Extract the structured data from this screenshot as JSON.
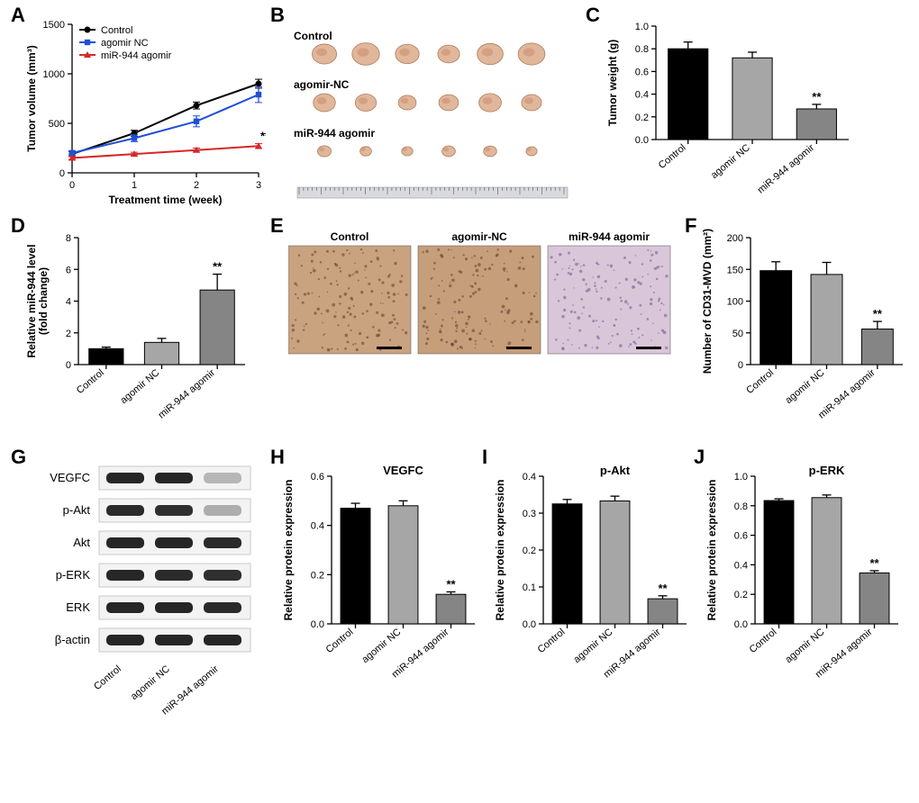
{
  "labels": {
    "A": "A",
    "B": "B",
    "C": "C",
    "D": "D",
    "E": "E",
    "F": "F",
    "G": "G",
    "H": "H",
    "I": "I",
    "J": "J"
  },
  "groups": [
    "Control",
    "agomir NC",
    "miR-944 agomir"
  ],
  "groups_dash": [
    "Control",
    "agomir-NC",
    "miR-944 agomir"
  ],
  "A": {
    "type": "line",
    "series": [
      {
        "name": "Control",
        "color": "#000000",
        "marker": "circle",
        "y": [
          190,
          400,
          680,
          900
        ],
        "err": [
          25,
          30,
          35,
          45
        ]
      },
      {
        "name": "agomir NC",
        "color": "#1f4fd6",
        "marker": "square",
        "y": [
          200,
          350,
          520,
          790
        ],
        "err": [
          25,
          35,
          55,
          80
        ]
      },
      {
        "name": "miR-944 agomir",
        "color": "#d62728",
        "marker": "triangle",
        "y": [
          150,
          190,
          230,
          270
        ],
        "err": [
          15,
          18,
          20,
          25
        ]
      }
    ],
    "x": [
      0,
      1,
      2,
      3
    ],
    "xlim": [
      0,
      3
    ],
    "ylim": [
      0,
      1500
    ],
    "ystep": 500,
    "xlabel": "Treatment time (week)",
    "ylabel": "Tumor volume (mm³)",
    "sig": "**"
  },
  "B": {
    "labels": [
      "Control",
      "agomir-NC",
      "miR-944 agomir"
    ],
    "n": 6
  },
  "C": {
    "type": "bar",
    "title": "",
    "vals": [
      0.8,
      0.72,
      0.27
    ],
    "errs": [
      0.06,
      0.05,
      0.04
    ],
    "ylim": [
      0,
      1.0
    ],
    "ystep": 0.2,
    "ylabel": "Tumor weight (g)",
    "colors": [
      "#000000",
      "#a6a6a6",
      "#858585"
    ],
    "sig": "**",
    "sig_idx": 2
  },
  "D": {
    "type": "bar",
    "vals": [
      1.0,
      1.4,
      4.7
    ],
    "errs": [
      0.1,
      0.25,
      1.0
    ],
    "ylim": [
      0,
      8
    ],
    "ystep": 2,
    "ylabel": "Relative miR-944 level\n(fold change)",
    "colors": [
      "#000000",
      "#a6a6a6",
      "#858585"
    ],
    "sig": "**",
    "sig_idx": 2
  },
  "E": {
    "labels": [
      "Control",
      "agomir-NC",
      "miR-944 agomir"
    ]
  },
  "F": {
    "type": "bar",
    "vals": [
      148,
      142,
      56
    ],
    "errs": [
      14,
      19,
      12
    ],
    "ylim": [
      0,
      200
    ],
    "ystep": 50,
    "ylabel": "Number of CD31-MVD (mm²)",
    "colors": [
      "#000000",
      "#a6a6a6",
      "#858585"
    ],
    "sig": "**",
    "sig_idx": 2
  },
  "G": {
    "rows": [
      "VEGFC",
      "p-Akt",
      "Akt",
      "p-ERK",
      "ERK",
      "β-actin"
    ]
  },
  "H": {
    "type": "bar",
    "title": "VEGFC",
    "vals": [
      0.47,
      0.48,
      0.12
    ],
    "errs": [
      0.02,
      0.02,
      0.01
    ],
    "ylim": [
      0,
      0.6
    ],
    "ystep": 0.2,
    "ylabel": "Relative protein expression",
    "colors": [
      "#000000",
      "#a6a6a6",
      "#858585"
    ],
    "sig": "**",
    "sig_idx": 2
  },
  "I": {
    "type": "bar",
    "title": "p-Akt",
    "vals": [
      0.325,
      0.333,
      0.068
    ],
    "errs": [
      0.012,
      0.013,
      0.008
    ],
    "ylim": [
      0,
      0.4
    ],
    "ystep": 0.1,
    "ylabel": "Relative protein expression",
    "colors": [
      "#000000",
      "#a6a6a6",
      "#858585"
    ],
    "sig": "**",
    "sig_idx": 2
  },
  "J": {
    "type": "bar",
    "title": "p-ERK",
    "vals": [
      0.835,
      0.855,
      0.345
    ],
    "errs": [
      0.012,
      0.018,
      0.015
    ],
    "ylim": [
      0,
      1.0
    ],
    "ystep": 0.2,
    "ylabel": "Relative protein expression",
    "colors": [
      "#000000",
      "#a6a6a6",
      "#858585"
    ],
    "sig": "**",
    "sig_idx": 2
  },
  "style": {
    "font_axis": 11,
    "font_label": 12,
    "font_legend": 12,
    "font_panel": 22,
    "bar_fill_gap": 0.18,
    "grid_color": "#ffffff",
    "background": "#ffffff"
  }
}
